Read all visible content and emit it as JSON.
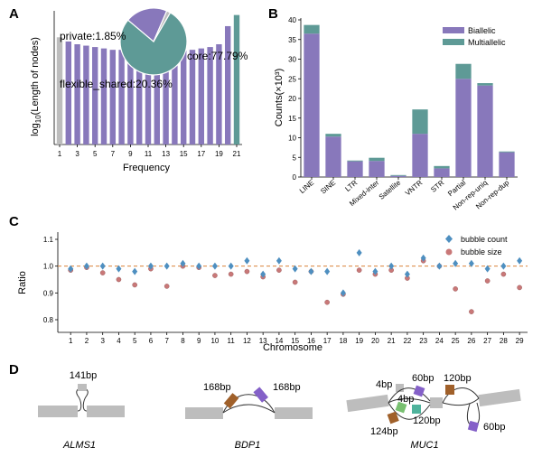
{
  "colors": {
    "purple": "#8878bb",
    "teal": "#5e9a96",
    "grey": "#bdbdbd",
    "diamond": "#4e8fc0",
    "circle": "#c97878",
    "refline": "#d9833b",
    "brown": "#a0602a",
    "violet": "#8460c8",
    "green": "#78c070",
    "mint": "#4fb39c"
  },
  "panels": {
    "a": "A",
    "b": "B",
    "c": "C",
    "d": "D"
  },
  "chart_data": [
    {
      "id": "A",
      "type": "bar",
      "xlabel": "Frequency",
      "ylabel_base": "log",
      "ylabel_sub": "10",
      "ylabel_rest": "(Length of nodes)",
      "x": [
        1,
        2,
        3,
        4,
        5,
        6,
        7,
        8,
        9,
        10,
        11,
        12,
        13,
        14,
        15,
        16,
        17,
        18,
        19,
        20,
        21
      ],
      "x_ticks": [
        "1",
        "3",
        "5",
        "7",
        "9",
        "11",
        "13",
        "15",
        "17",
        "19",
        "21"
      ],
      "values": [
        7.7,
        7.4,
        7.2,
        7.1,
        7.0,
        6.9,
        6.8,
        6.8,
        6.8,
        6.75,
        6.75,
        6.7,
        6.7,
        6.7,
        6.75,
        6.8,
        6.9,
        7.0,
        7.2,
        8.5,
        9.3
      ],
      "ylim": [
        0,
        9.6
      ],
      "bar_groups": [
        "private",
        "flexible",
        "flexible",
        "flexible",
        "flexible",
        "flexible",
        "flexible",
        "flexible",
        "flexible",
        "flexible",
        "flexible",
        "flexible",
        "flexible",
        "flexible",
        "flexible",
        "flexible",
        "flexible",
        "flexible",
        "flexible",
        "flexible",
        "core"
      ],
      "annotations": {
        "private": "private:1.85%",
        "core": "core:77.79%",
        "flexible": "flexible_shared:20.36%"
      },
      "pie": [
        {
          "name": "core",
          "value": 77.79
        },
        {
          "name": "flexible_shared",
          "value": 20.36
        },
        {
          "name": "private",
          "value": 1.85
        }
      ]
    },
    {
      "id": "B",
      "type": "bar",
      "ylabel": "Counts(×10³)",
      "ylim": [
        0,
        40
      ],
      "y_ticks": [
        "0",
        "5",
        "10",
        "15",
        "20",
        "25",
        "30",
        "35",
        "40"
      ],
      "categories": [
        "LINE",
        "SINE",
        "LTR",
        "Mixed-inter",
        "Satellite",
        "VNTR",
        "STR",
        "Partial",
        "Non-rep-uniq",
        "Non-rep-dup"
      ],
      "series": [
        {
          "name": "Biallelic",
          "values": [
            36.5,
            10.3,
            4.0,
            4.1,
            0.3,
            11.0,
            2.2,
            25.0,
            23.3,
            6.3
          ]
        },
        {
          "name": "Multiallelic",
          "values": [
            2.2,
            0.7,
            0.2,
            0.8,
            0.2,
            6.2,
            0.6,
            3.8,
            0.6,
            0.2
          ]
        }
      ],
      "legend": "top-right"
    },
    {
      "id": "C",
      "type": "scatter",
      "xlabel": "Chromosome",
      "ylabel": "Ratio",
      "ylim": [
        0.8,
        1.1
      ],
      "y_ticks": [
        "0.8",
        "0.9",
        "1.0",
        "1.1"
      ],
      "reference_line": 1.0,
      "categories": [
        "1",
        "2",
        "3",
        "4",
        "5",
        "6",
        "7",
        "8",
        "9",
        "10",
        "11",
        "12",
        "13",
        "14",
        "15",
        "16",
        "17",
        "18",
        "19",
        "20",
        "21",
        "22",
        "23",
        "24",
        "25",
        "26",
        "27",
        "28",
        "29"
      ],
      "series": [
        {
          "name": "bubble count",
          "marker": "diamond",
          "values": [
            0.99,
            1.0,
            1.0,
            0.99,
            0.98,
            1.0,
            1.0,
            1.01,
            1.0,
            1.0,
            1.0,
            1.02,
            0.97,
            1.02,
            0.99,
            0.98,
            0.98,
            0.9,
            1.05,
            0.98,
            1.0,
            0.97,
            1.03,
            1.0,
            1.01,
            1.01,
            0.99,
            1.0,
            1.02
          ]
        },
        {
          "name": "bubble size",
          "marker": "circle",
          "values": [
            0.985,
            0.995,
            0.975,
            0.95,
            0.93,
            0.99,
            0.925,
            1.0,
            0.995,
            0.965,
            0.97,
            0.98,
            0.96,
            0.985,
            0.94,
            0.98,
            0.865,
            0.895,
            0.985,
            0.97,
            0.985,
            0.955,
            1.02,
            1.0,
            0.915,
            0.83,
            0.945,
            0.97,
            0.92
          ]
        }
      ],
      "legend": "top-right"
    }
  ],
  "panel_d": {
    "alms1": {
      "gene": "ALMS1",
      "label": "141bp"
    },
    "bdp1": {
      "gene": "BDP1",
      "label_left": "168bp",
      "label_right": "168bp"
    },
    "muc1": {
      "gene": "MUC1",
      "labels": [
        "4bp",
        "60bp",
        "120bp",
        "4bp",
        "120bp",
        "124bp",
        "60bp"
      ]
    }
  }
}
